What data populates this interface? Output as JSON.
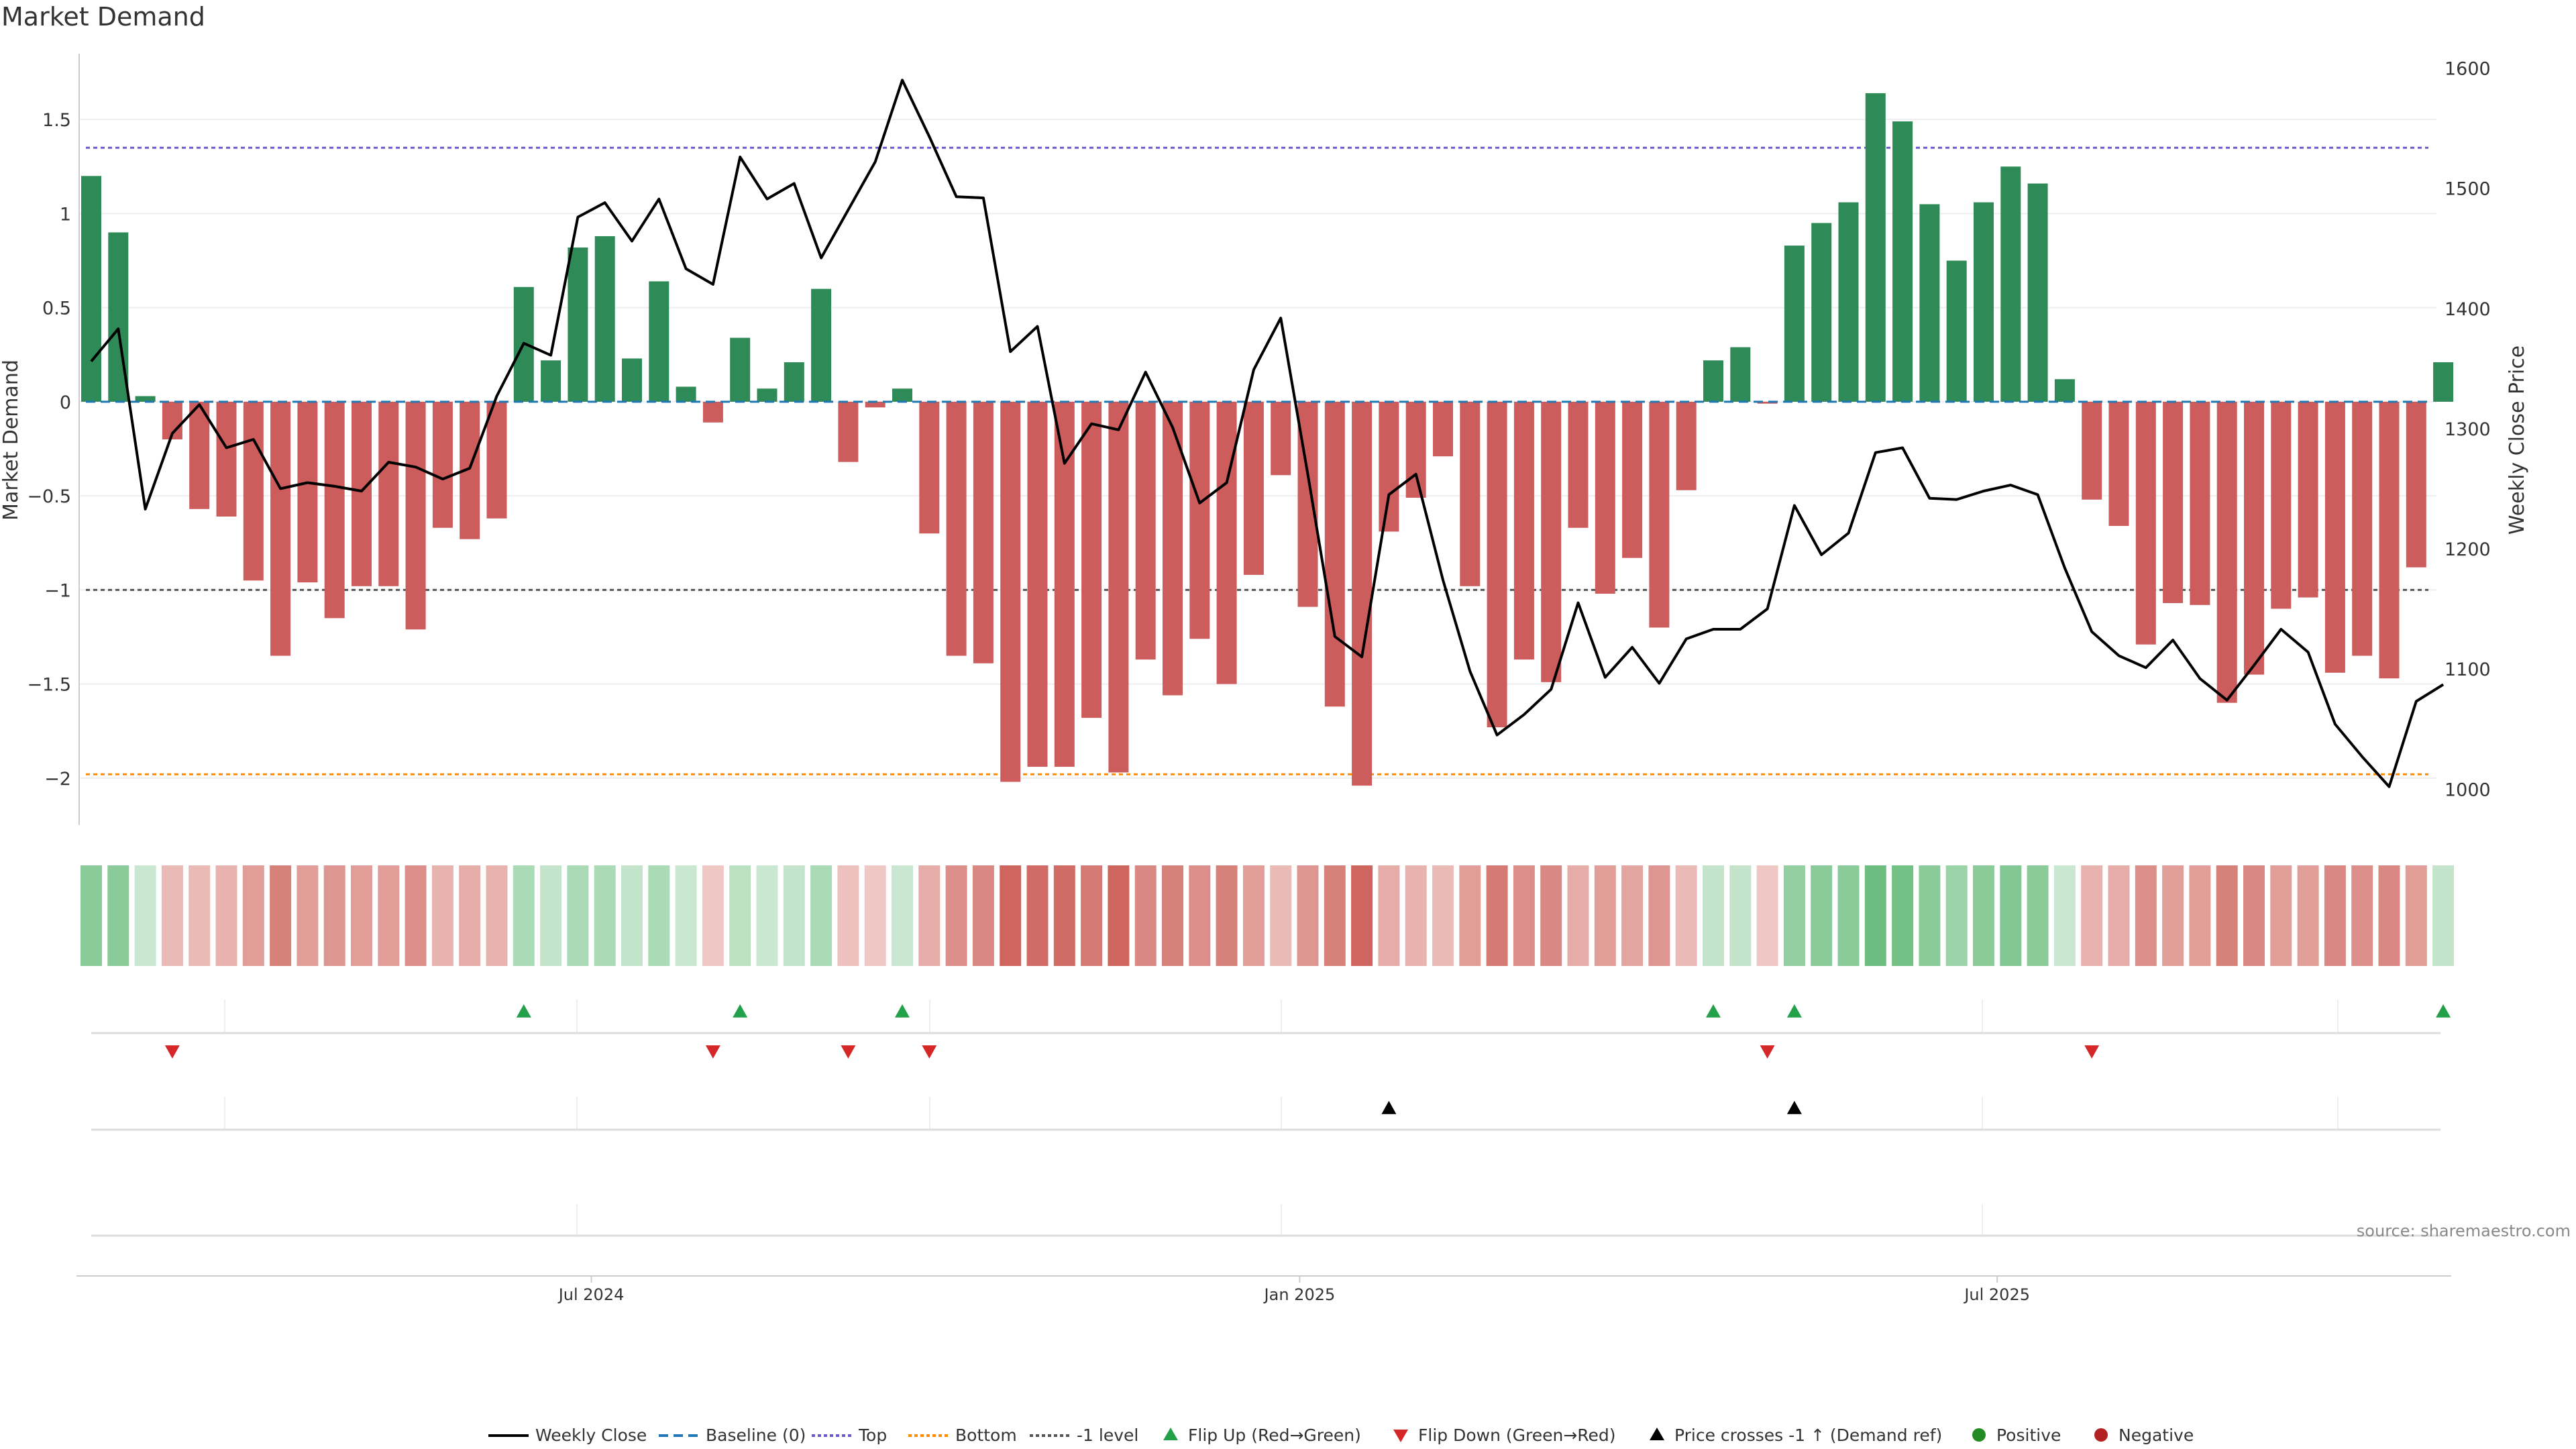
{
  "chart_data": {
    "title": "Market Demand",
    "type": "bar",
    "left_axis": {
      "label": "Market Demand",
      "ylim": [
        -2.25,
        1.85
      ],
      "ticks": [
        -2,
        -1.5,
        -1,
        -0.5,
        0,
        0.5,
        1,
        1.5
      ],
      "tick_labels": [
        "−2",
        "−1.5",
        "−1",
        "−0.5",
        "0",
        "0.5",
        "1",
        "1.5"
      ]
    },
    "right_axis": {
      "label": "Weekly Close Price",
      "ylim": [
        970,
        1612
      ],
      "ticks": [
        1000,
        1100,
        1200,
        1300,
        1400,
        1500,
        1600
      ],
      "tick_labels": [
        "1000",
        "1100",
        "1200",
        "1300",
        "1400",
        "1500",
        "1600"
      ]
    },
    "x_axis": {
      "ticks": [
        18.5,
        44.7,
        70.5
      ],
      "tick_labels": [
        "Jul 2024",
        "Jan 2025",
        "Jul 2025"
      ]
    },
    "reference_lines": {
      "baseline": 0,
      "top": 1.35,
      "bottom": -1.98,
      "minus_one": -1
    },
    "colors": {
      "positive": "#2e8b57",
      "negative": "#cd5c5c",
      "price": "#000000",
      "top": "#6a5acd",
      "bottom": "#ff8c00",
      "baseline": "#1f77b4",
      "minus_one": "#555555",
      "flip_up": "#22a04a",
      "flip_down": "#d62728",
      "cross": "#000000",
      "pos_dot": "#228b22",
      "neg_dot": "#b22222"
    },
    "demand": [
      1.2,
      0.9,
      0.03,
      -0.2,
      -0.57,
      -0.61,
      -0.95,
      -1.35,
      -0.96,
      -1.15,
      -0.98,
      -0.98,
      -1.21,
      -0.67,
      -0.73,
      -0.62,
      0.61,
      0.22,
      0.82,
      0.88,
      0.23,
      0.64,
      0.08,
      -0.11,
      0.34,
      0.07,
      0.21,
      0.6,
      -0.32,
      -0.03,
      0.07,
      -0.7,
      -1.35,
      -1.39,
      -2.02,
      -1.94,
      -1.94,
      -1.68,
      -1.97,
      -1.37,
      -1.56,
      -1.26,
      -1.5,
      -0.92,
      -0.39,
      -1.09,
      -1.62,
      -2.04,
      -0.69,
      -0.51,
      -0.29,
      -0.98,
      -1.73,
      -1.37,
      -1.49,
      -0.67,
      -1.02,
      -0.83,
      -1.2,
      -0.47,
      0.22,
      0.29,
      -0.01,
      0.83,
      0.95,
      1.06,
      1.64,
      1.49,
      1.05,
      0.75,
      1.06,
      1.25,
      1.16,
      0.12,
      -0.52,
      -0.66,
      -1.29,
      -1.07,
      -1.08,
      -1.6,
      -1.45,
      -1.1,
      -1.04,
      -1.44,
      -1.35,
      -1.47,
      -0.88,
      0.21
    ],
    "weekly_close": [
      1356,
      1383,
      1233,
      1296,
      1320,
      1284,
      1291,
      1250,
      1255,
      1252,
      1248,
      1272,
      1268,
      1258,
      1267,
      1327,
      1371,
      1361,
      1476,
      1488,
      1456,
      1491,
      1433,
      1420,
      1526,
      1491,
      1504,
      1442,
      1482,
      1522,
      1590,
      1543,
      1493,
      1492,
      1364,
      1385,
      1271,
      1304,
      1299,
      1347,
      1301,
      1238,
      1255,
      1349,
      1392,
      1262,
      1127,
      1110,
      1245,
      1262,
      1174,
      1098,
      1045,
      1062,
      1083,
      1155,
      1093,
      1118,
      1088,
      1125,
      1133,
      1133,
      1150,
      1236,
      1195,
      1213,
      1280,
      1284,
      1242,
      1241,
      1248,
      1253,
      1245,
      1184,
      1131,
      1111,
      1101,
      1124,
      1092,
      1074,
      1103,
      1133,
      1114,
      1054,
      1027,
      1002,
      1073,
      1087
    ],
    "flip_up_idx": [
      16,
      24,
      30,
      60,
      63,
      87
    ],
    "flip_down_idx": [
      3,
      23,
      28,
      31,
      62,
      74
    ],
    "price_cross_idx": [
      48,
      63
    ],
    "strip": {
      "note": "per-week shaded strip; color encodes demand sign and magnitude",
      "levels": [
        0.6,
        0.6,
        0.2,
        0.3,
        0.3,
        0.35,
        0.5,
        0.7,
        0.5,
        0.55,
        0.5,
        0.5,
        0.6,
        0.35,
        0.4,
        0.35,
        0.4,
        0.25,
        0.4,
        0.4,
        0.25,
        0.4,
        0.2,
        0.2,
        0.3,
        0.2,
        0.25,
        0.4,
        0.25,
        0.2,
        0.2,
        0.4,
        0.6,
        0.65,
        0.9,
        0.85,
        0.85,
        0.75,
        0.9,
        0.65,
        0.7,
        0.6,
        0.7,
        0.5,
        0.3,
        0.55,
        0.7,
        0.9,
        0.4,
        0.35,
        0.3,
        0.5,
        0.75,
        0.6,
        0.65,
        0.4,
        0.5,
        0.45,
        0.55,
        0.3,
        0.25,
        0.25,
        0.2,
        0.55,
        0.6,
        0.6,
        0.8,
        0.75,
        0.6,
        0.5,
        0.6,
        0.65,
        0.6,
        0.2,
        0.35,
        0.4,
        0.6,
        0.5,
        0.5,
        0.7,
        0.65,
        0.5,
        0.5,
        0.65,
        0.6,
        0.65,
        0.5,
        0.25
      ]
    },
    "legend": {
      "placement": "bottom-center",
      "entries": [
        "Weekly Close",
        "Baseline (0)",
        "Top",
        "Bottom",
        "-1 level",
        "Flip Up (Red→Green)",
        "Flip Down (Green→Red)",
        "Price crosses -1 ↑ (Demand ref)",
        "Positive",
        "Negative"
      ]
    },
    "source_note": "source: sharemaestro.com"
  }
}
